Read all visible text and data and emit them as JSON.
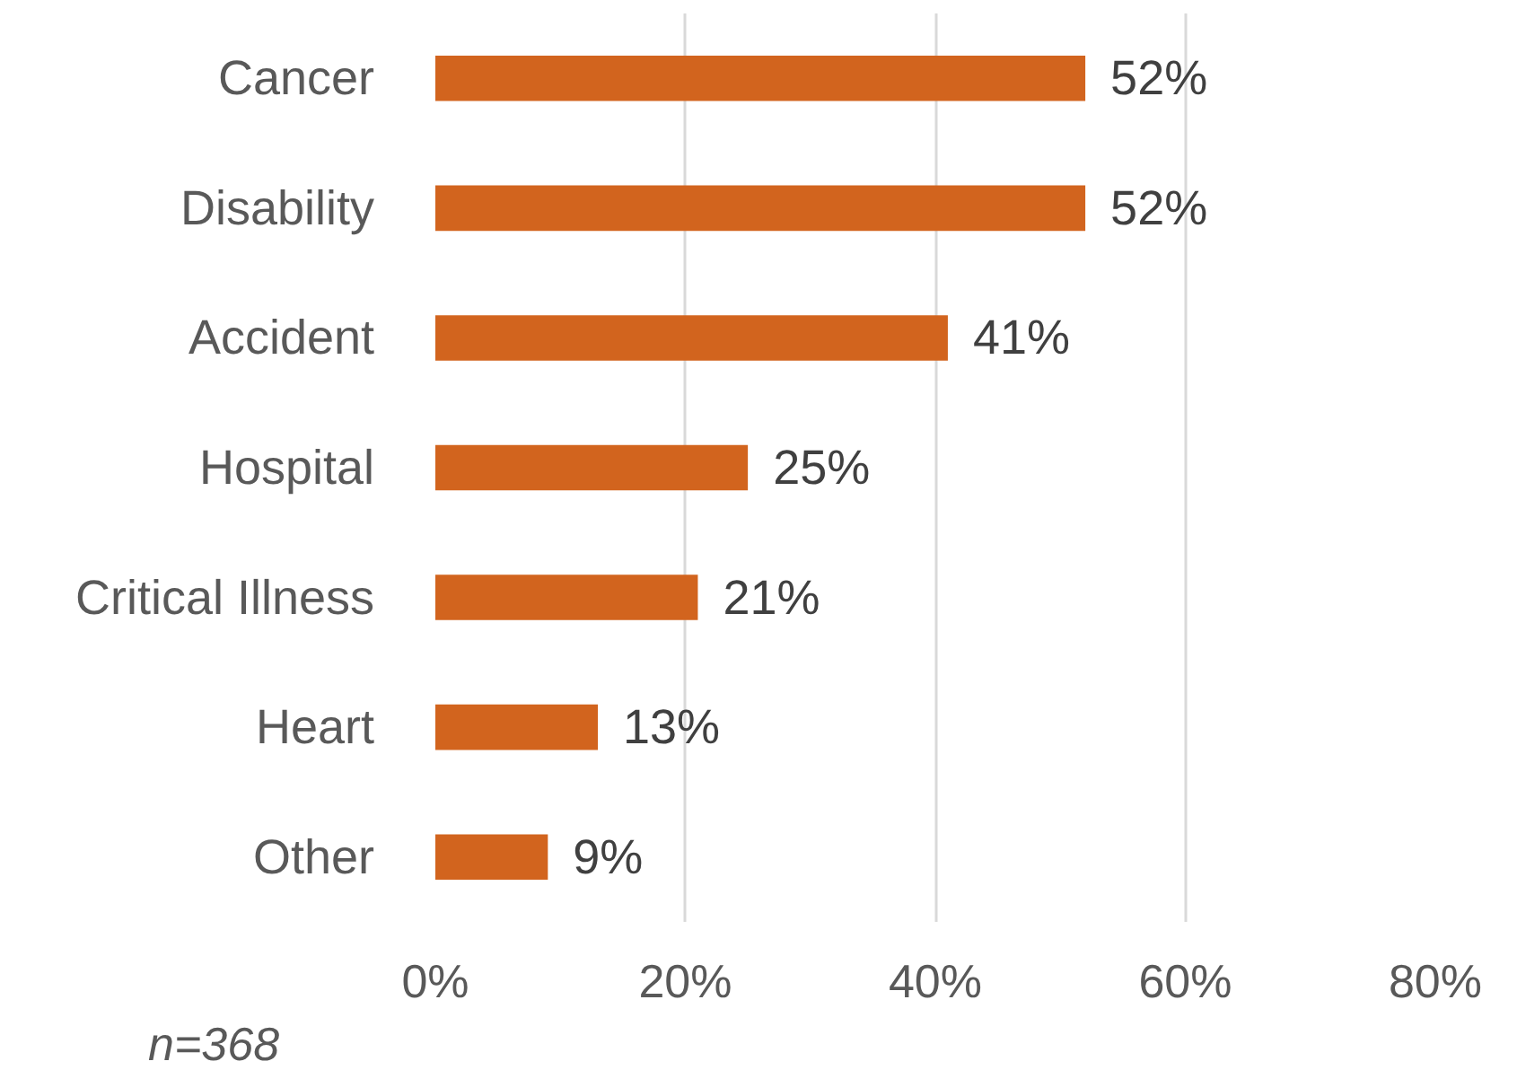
{
  "chart_data": {
    "type": "bar",
    "orientation": "horizontal",
    "categories": [
      "Cancer",
      "Disability",
      "Accident",
      "Hospital",
      "Critical Illness",
      "Heart",
      "Other"
    ],
    "values": [
      52,
      52,
      41,
      25,
      21,
      13,
      9
    ],
    "value_labels": [
      "52%",
      "52%",
      "41%",
      "25%",
      "21%",
      "13%",
      "9%"
    ],
    "color": "#d2641e",
    "xlim": [
      0,
      80
    ],
    "xticks": [
      {
        "value": 0,
        "label": "0%"
      },
      {
        "value": 20,
        "label": "20%"
      },
      {
        "value": 40,
        "label": "40%"
      },
      {
        "value": 60,
        "label": "60%"
      },
      {
        "value": 80,
        "label": "80%"
      }
    ],
    "grid": "x",
    "annotations": [
      "n=368"
    ]
  }
}
